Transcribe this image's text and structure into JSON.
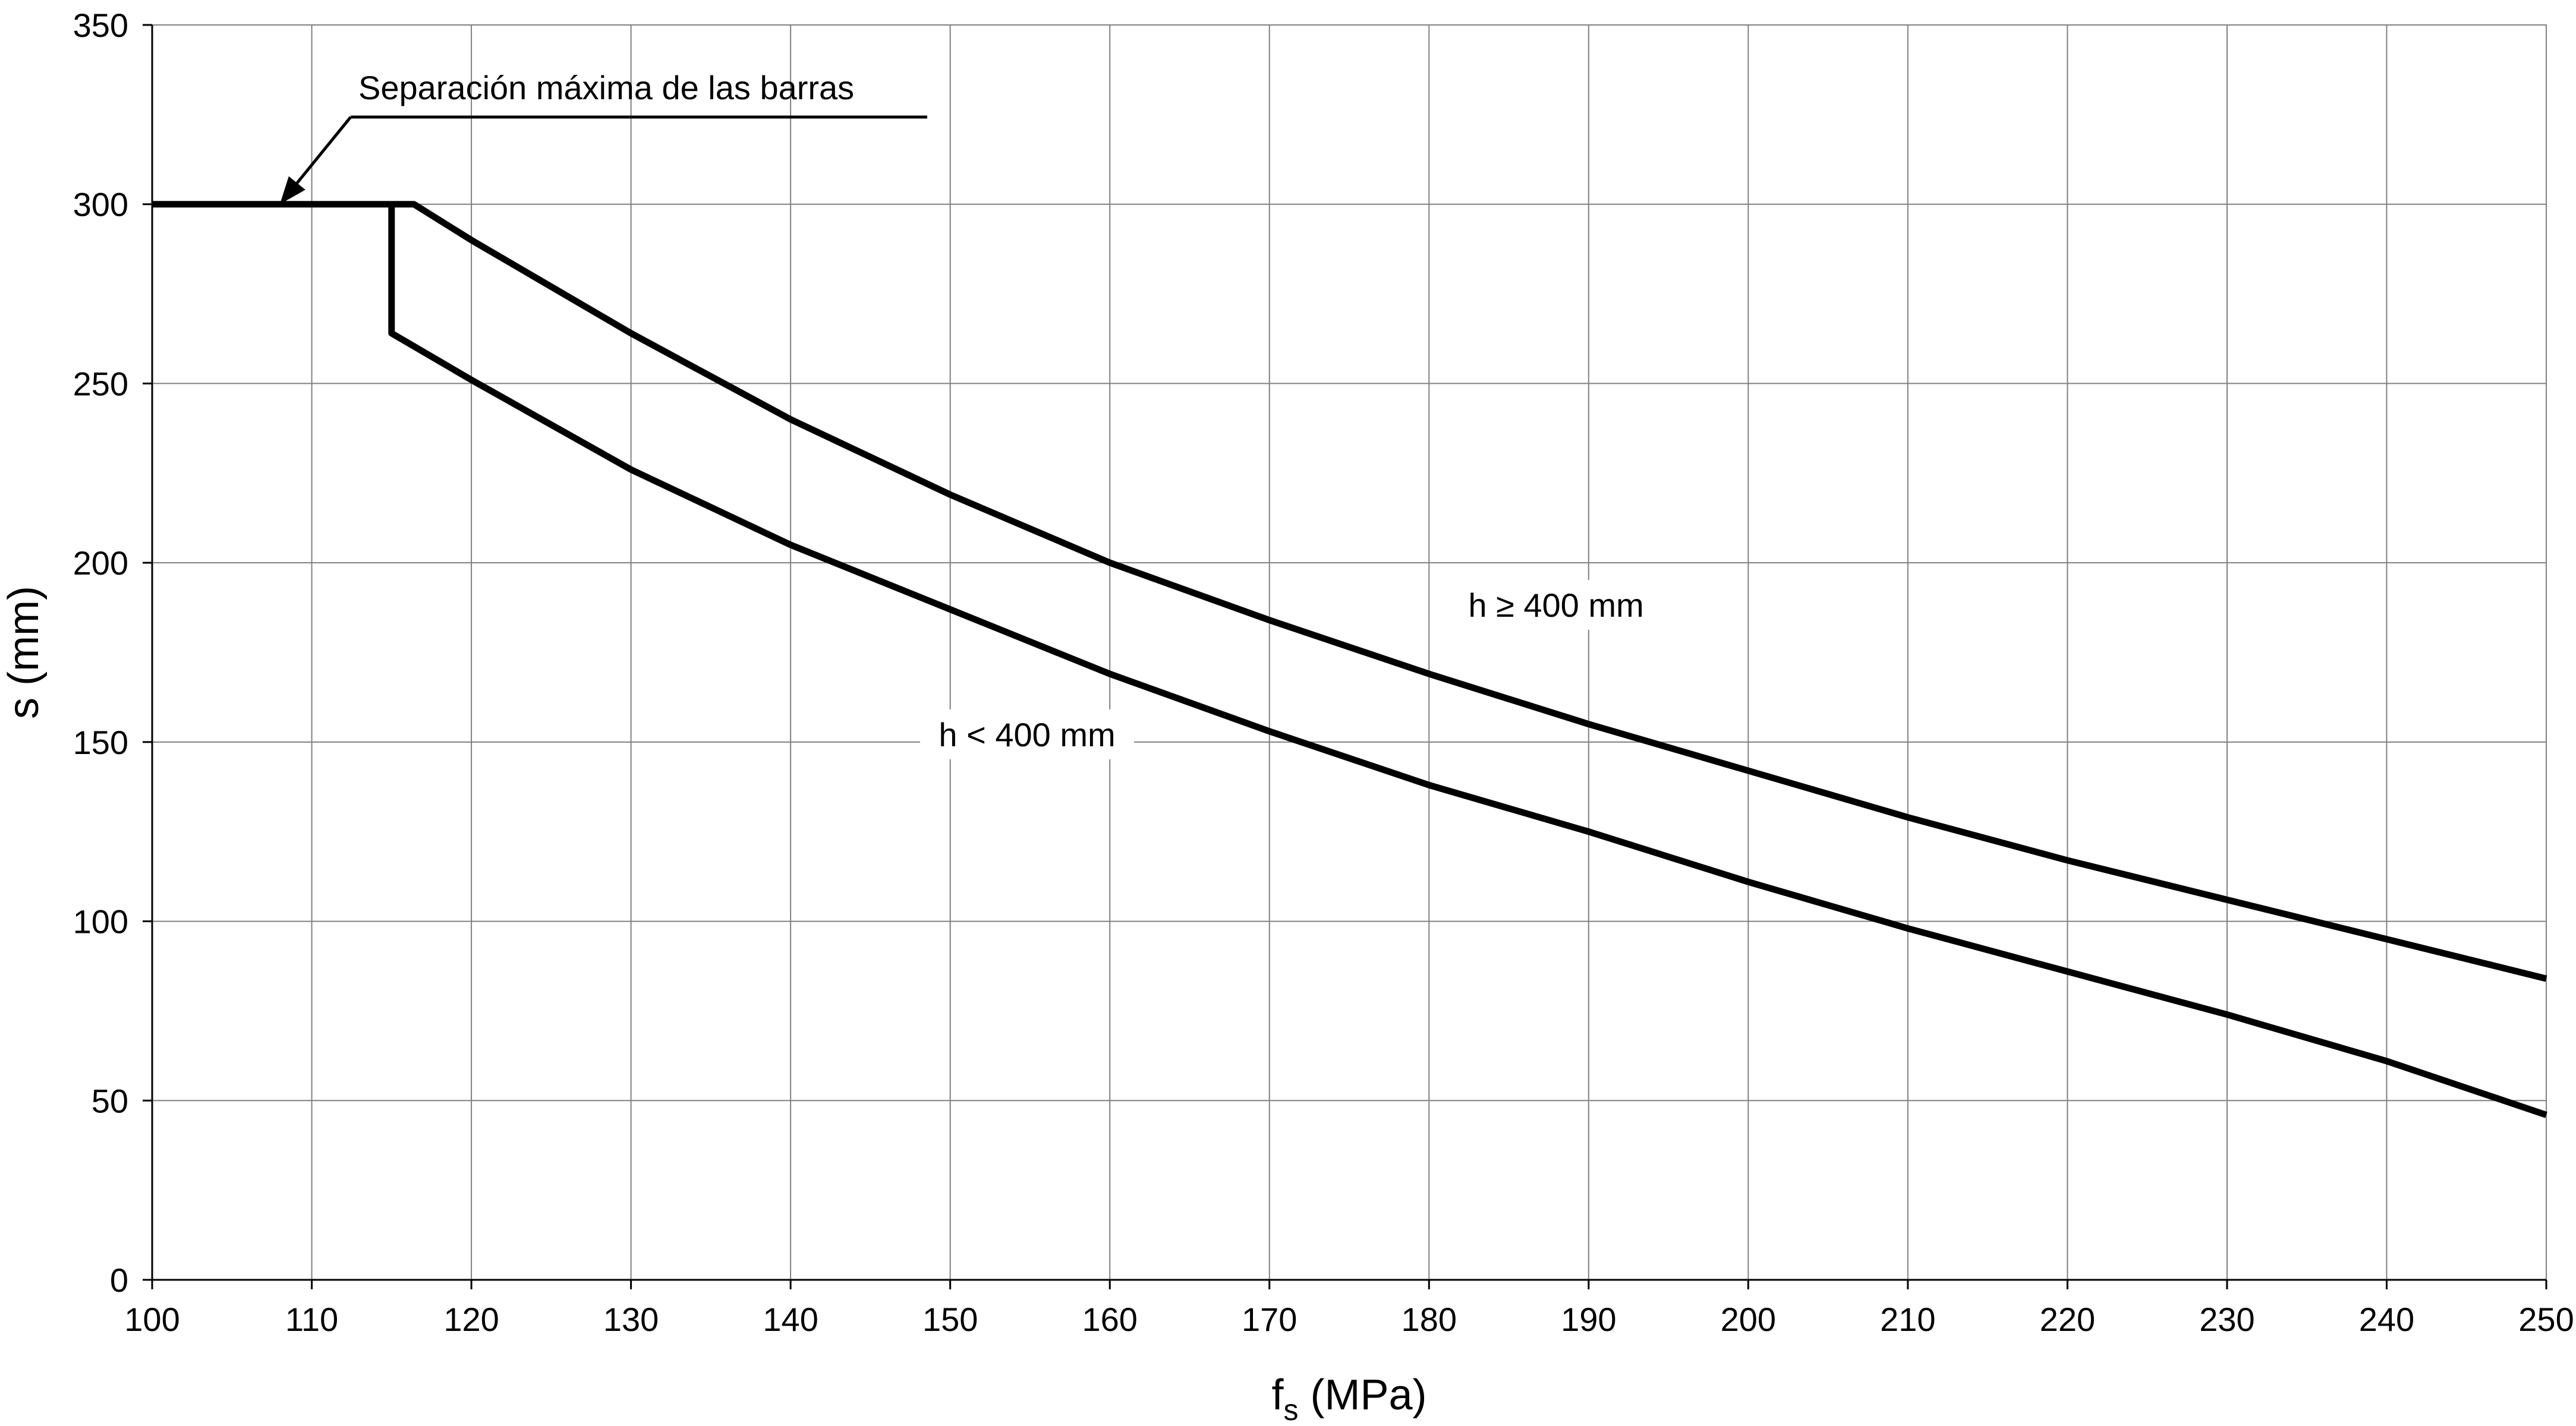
{
  "chart_data": {
    "type": "line",
    "xlabel": {
      "main": "f",
      "sub": "s",
      "unit": "(MPa)"
    },
    "ylabel": "s (mm)",
    "xlim": [
      100,
      250
    ],
    "ylim": [
      0,
      350
    ],
    "xticks": [
      100,
      110,
      120,
      130,
      140,
      150,
      160,
      170,
      180,
      190,
      200,
      210,
      220,
      230,
      240,
      250
    ],
    "yticks": [
      0,
      50,
      100,
      150,
      200,
      250,
      300,
      350
    ],
    "grid": true,
    "legend": "none",
    "series": [
      {
        "name": "h ≥ 400 mm",
        "points": [
          [
            100,
            300
          ],
          [
            116.4,
            300
          ],
          [
            120,
            290
          ],
          [
            130,
            264
          ],
          [
            140,
            240
          ],
          [
            150,
            219
          ],
          [
            160,
            200
          ],
          [
            170,
            184
          ],
          [
            180,
            169
          ],
          [
            190,
            155
          ],
          [
            200,
            142
          ],
          [
            210,
            129
          ],
          [
            220,
            117
          ],
          [
            230,
            106
          ],
          [
            240,
            95
          ],
          [
            250,
            84
          ]
        ]
      },
      {
        "name": "h < 400 mm",
        "points": [
          [
            115,
            300
          ],
          [
            115,
            264
          ],
          [
            120,
            251
          ],
          [
            130,
            226
          ],
          [
            140,
            205
          ],
          [
            150,
            187
          ],
          [
            160,
            169
          ],
          [
            170,
            153
          ],
          [
            180,
            138
          ],
          [
            190,
            125
          ],
          [
            200,
            111
          ],
          [
            210,
            98
          ],
          [
            220,
            86
          ],
          [
            230,
            74
          ],
          [
            240,
            61
          ],
          [
            250,
            46
          ]
        ]
      }
    ],
    "annotations": [
      {
        "id": "max-spacing",
        "text": "Separación máxima de las barras",
        "x": 108,
        "y": 300
      },
      {
        "id": "h-ge-400",
        "text": "h ≥ 400 mm"
      },
      {
        "id": "h-lt-400",
        "text": "h < 400 mm"
      }
    ],
    "colors": {
      "line": "#000000",
      "grid": "#808080",
      "background": "#ffffff"
    }
  }
}
